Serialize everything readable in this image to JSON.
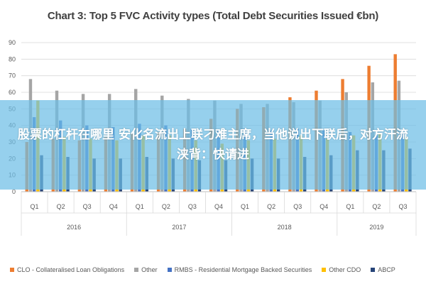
{
  "chart_data": {
    "type": "bar",
    "title": "Chart 3: Top 5 FVC Activity types (Total Debt Securities Issued €bn)",
    "xlabel": "",
    "ylabel": "",
    "ylim": [
      0,
      90
    ],
    "yticks": [
      0,
      10,
      20,
      30,
      40,
      50,
      60,
      70,
      80,
      90
    ],
    "grid": true,
    "legend_position": "bottom",
    "categories": [
      "Q1",
      "Q2",
      "Q3",
      "Q4",
      "Q1",
      "Q2",
      "Q3",
      "Q4",
      "Q1",
      "Q2",
      "Q3",
      "Q4",
      "Q1",
      "Q2",
      "Q3"
    ],
    "groups": [
      {
        "label": "2016",
        "span": 4
      },
      {
        "label": "2017",
        "span": 4
      },
      {
        "label": "2018",
        "span": 4
      },
      {
        "label": "2019",
        "span": 3
      }
    ],
    "series": [
      {
        "name": "CLO - Collateralised Loan Obligations",
        "color": "#ED7D31",
        "values": [
          30,
          32,
          31,
          33,
          35,
          36,
          38,
          44,
          50,
          51,
          57,
          61,
          68,
          76,
          83
        ]
      },
      {
        "name": "Other",
        "color": "#A5A5A5",
        "values": [
          68,
          61,
          59,
          59,
          62,
          58,
          56,
          55,
          53,
          53,
          54,
          55,
          60,
          66,
          67
        ]
      },
      {
        "name": "RMBS - Residential Mortgage Backed Securities",
        "color": "#4472C4",
        "values": [
          45,
          43,
          40,
          39,
          41,
          40,
          38,
          37,
          38,
          37,
          38,
          37,
          36,
          34,
          35
        ]
      },
      {
        "name": "Other CDO",
        "color": "#FFC000",
        "values": [
          55,
          33,
          32,
          31,
          34,
          34,
          31,
          29,
          31,
          32,
          34,
          32,
          34,
          35,
          33
        ]
      },
      {
        "name": "ABCP",
        "color": "#264478",
        "values": [
          22,
          21,
          20,
          20,
          21,
          20,
          19,
          19,
          20,
          20,
          21,
          22,
          25,
          25,
          26
        ]
      }
    ]
  },
  "overlay": {
    "text": "股票的杠杆在哪里 安化名流出上联刁难主席，当他说出下联后，对方汗流浃背：快请进"
  }
}
